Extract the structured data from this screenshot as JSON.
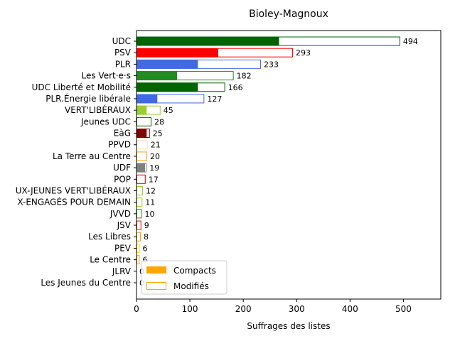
{
  "chart_data": {
    "type": "bar",
    "orientation": "horizontal",
    "title": "Bioley-Magnoux",
    "xlabel": "Suffrages des listes",
    "ylabel": "",
    "xlim": [
      0,
      570
    ],
    "xticks": [
      0,
      100,
      200,
      300,
      400,
      500
    ],
    "grid": false,
    "legend_position": "lower-left",
    "legend": [
      {
        "name": "Compacts",
        "style": "filled",
        "color": "#ffa500"
      },
      {
        "name": "Modifiés",
        "style": "outline",
        "color": "#ffa500"
      }
    ],
    "categories": [
      {
        "label": "UDC",
        "total": 494,
        "compact": 267,
        "color": "#006400"
      },
      {
        "label": "PSV",
        "total": 293,
        "compact": 153,
        "color": "#ff0000"
      },
      {
        "label": "PLR",
        "total": 233,
        "compact": 115,
        "color": "#4169e1"
      },
      {
        "label": "Les Vert·e·s",
        "total": 182,
        "compact": 76,
        "color": "#228b22"
      },
      {
        "label": "UDC Liberté et Mobilité",
        "total": 166,
        "compact": 115,
        "color": "#006400"
      },
      {
        "label": "PLR.Énergie libérale",
        "total": 127,
        "compact": 39,
        "color": "#4169e1"
      },
      {
        "label": "VERT'LIBÉRAUX",
        "total": 45,
        "compact": 19,
        "color": "#9acd32"
      },
      {
        "label": "Jeunes UDC",
        "total": 28,
        "compact": 0,
        "color": "#006400"
      },
      {
        "label": "EàG",
        "total": 25,
        "compact": 19,
        "color": "#800000"
      },
      {
        "label": "PPVD",
        "total": 21,
        "compact": 0,
        "color": "#ffe4b5"
      },
      {
        "label": "La Terre au Centre",
        "total": 20,
        "compact": 0,
        "color": "#ffa500"
      },
      {
        "label": "UDF",
        "total": 19,
        "compact": 16,
        "color": "#808080"
      },
      {
        "label": "POP",
        "total": 17,
        "compact": 0,
        "color": "#c00000"
      },
      {
        "label": "UX-JEUNES VERT'LIBÉRAUX",
        "total": 12,
        "compact": 0,
        "color": "#9acd32"
      },
      {
        "label": "X-ENGAGÉS POUR DEMAIN",
        "total": 11,
        "compact": 0,
        "color": "#9acd32"
      },
      {
        "label": "JVVD",
        "total": 10,
        "compact": 0,
        "color": "#228b22"
      },
      {
        "label": "JSV",
        "total": 9,
        "compact": 0,
        "color": "#ff0000"
      },
      {
        "label": "Les Libres",
        "total": 8,
        "compact": 0,
        "color": "#ffa500"
      },
      {
        "label": "PEV",
        "total": 6,
        "compact": 0,
        "color": "#ffd700"
      },
      {
        "label": "Le Centre",
        "total": 6,
        "compact": 0,
        "color": "#ffa500"
      },
      {
        "label": "JLRV",
        "total": 0,
        "compact": 0,
        "color": "#4169e1"
      },
      {
        "label": "Les Jeunes du Centre",
        "total": 0,
        "compact": 0,
        "color": "#ffa500"
      }
    ]
  }
}
